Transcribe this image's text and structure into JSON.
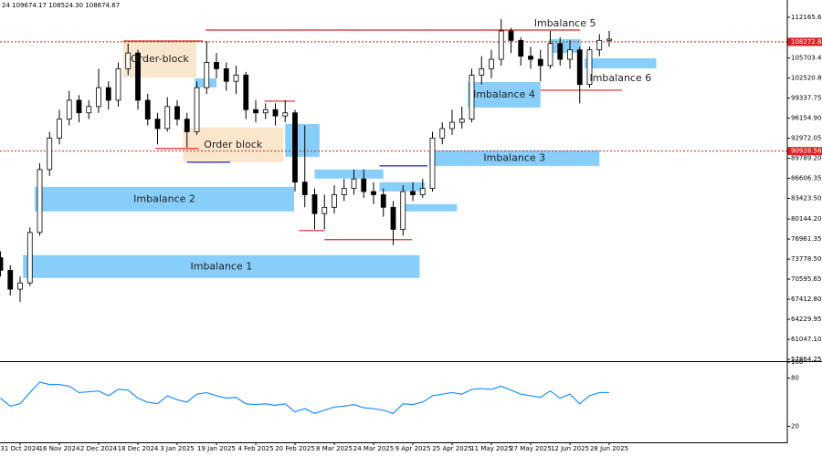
{
  "chart_data": {
    "type": "candlestick",
    "header": "24 109674.17 108524.30 108674.67",
    "categories": [
      null,
      null,
      "31 Oct 2024",
      null,
      null,
      null,
      "16 Nov 2024",
      null,
      null,
      null,
      "2 Dec 2024",
      null,
      null,
      null,
      "18 Dec 2024",
      null,
      null,
      null,
      "3 Jan 2025",
      null,
      null,
      null,
      "19 Jan 2025",
      null,
      null,
      null,
      "4 Feb 2025",
      null,
      null,
      null,
      "20 Feb 2025",
      null,
      null,
      null,
      "8 Mar 2025",
      null,
      null,
      null,
      "24 Mar 2025",
      null,
      null,
      null,
      "9 Apr 2025",
      null,
      null,
      null,
      "25 Apr 2025",
      null,
      null,
      null,
      "11 May 2025",
      null,
      null,
      null,
      "27 May 2025",
      null,
      null,
      null,
      "12 Jun 2025",
      null,
      null,
      null,
      "28 Jun 2025"
    ],
    "open": [
      74000,
      72000,
      69000,
      70000,
      78000,
      88000,
      93000,
      96000,
      99000,
      97000,
      98000,
      101000,
      99000,
      104000,
      106500,
      99000,
      96000,
      94500,
      98000,
      96000,
      94000,
      101000,
      105000,
      104000,
      102000,
      103000,
      97500,
      97000,
      97500,
      96500,
      97000,
      86000,
      84000,
      81000,
      82000,
      84000,
      85000,
      86500,
      84500,
      84000,
      82000,
      78500,
      84500,
      84000,
      85000,
      93000,
      94500,
      95500,
      96000,
      103000,
      104000,
      105500,
      110000,
      108500,
      106000,
      105500,
      104500,
      108000,
      105500,
      107000,
      101500,
      107000,
      108500
    ],
    "high": [
      75000,
      72800,
      71000,
      78800,
      89000,
      94000,
      97500,
      100500,
      99800,
      99000,
      104000,
      102000,
      105000,
      108000,
      107000,
      100000,
      97000,
      99500,
      99000,
      97000,
      102000,
      108400,
      106500,
      105000,
      104500,
      103500,
      99000,
      98500,
      98500,
      99000,
      97500,
      95000,
      85000,
      84000,
      85500,
      86500,
      88000,
      88000,
      86000,
      85000,
      83000,
      85500,
      86000,
      86500,
      94000,
      95500,
      97500,
      98000,
      104000,
      106000,
      107000,
      111900,
      110500,
      109000,
      107500,
      107000,
      110000,
      109000,
      108500,
      107500,
      107500,
      109500,
      110000
    ],
    "low": [
      71000,
      68000,
      67000,
      69500,
      77500,
      87000,
      92000,
      95000,
      95500,
      96000,
      97000,
      97500,
      98000,
      103000,
      97500,
      95000,
      92000,
      94000,
      95000,
      91500,
      93500,
      100000,
      102500,
      100500,
      100000,
      96000,
      95500,
      96000,
      95000,
      95500,
      84500,
      82000,
      78500,
      78500,
      81000,
      83000,
      84000,
      83500,
      82500,
      80500,
      76000,
      77500,
      83000,
      83500,
      84500,
      92000,
      93500,
      94500,
      95500,
      101500,
      102500,
      104500,
      106500,
      104500,
      104000,
      102000,
      104000,
      104500,
      104000,
      98500,
      101000,
      106000,
      107500
    ],
    "close": [
      72000,
      69000,
      70000,
      78000,
      88000,
      93000,
      96000,
      99000,
      97000,
      98000,
      101000,
      99000,
      104000,
      106500,
      99000,
      96000,
      94500,
      98000,
      96000,
      94000,
      101000,
      105000,
      104000,
      102000,
      103000,
      97500,
      97000,
      97500,
      96500,
      97000,
      86000,
      84000,
      81000,
      82000,
      84000,
      85000,
      86500,
      84500,
      84000,
      82000,
      78500,
      84500,
      84000,
      85000,
      93000,
      94500,
      95500,
      96000,
      103000,
      104000,
      105500,
      110000,
      108500,
      106000,
      105500,
      104500,
      108000,
      105500,
      107000,
      101500,
      107000,
      108500,
      108700
    ],
    "ylim": [
      57575,
      114336
    ],
    "yticks": [
      112165.65,
      105703.45,
      {
        "value": 102520.8,
        "label": "102520.80"
      },
      99337.75,
      {
        "value": 96154.9,
        "label": "96154.90"
      },
      92972.05,
      {
        "value": 89789.2,
        "label": "89789.20"
      },
      86606.35,
      {
        "value": 83423.5,
        "label": "83423.50"
      },
      {
        "value": 80144.2,
        "label": "80144.20"
      },
      76961.35,
      {
        "value": 73778.5,
        "label": "73778.50"
      },
      70595.65,
      {
        "value": 67412.8,
        "label": "67412.80"
      },
      64229.95,
      {
        "value": 61047.1,
        "label": "61047.10"
      },
      57864.25
    ],
    "price_marks": [
      108272.88,
      90928.58
    ],
    "zones": [
      {
        "label": "Imbalance 1",
        "color": "#87cefa",
        "x_range": [
          2.3,
          42.7
        ],
        "y_range": [
          70788,
          74405
        ]
      },
      {
        "label": "Imbalance 2",
        "color": "#87cefa",
        "x_range": [
          3.5,
          29.9
        ],
        "y_range": [
          81349,
          85255
        ]
      },
      {
        "label": "Imbalance 3",
        "color": "#87cefa",
        "x_range": [
          43.7,
          61
        ],
        "y_range": [
          88583,
          91042
        ]
      },
      {
        "label": "Imbalance 4",
        "color": "#87cefa",
        "x_range": [
          47.6,
          55
        ],
        "y_range": [
          97842,
          101893
        ]
      },
      {
        "label": "Imbalance 5",
        "color": "#87cefa",
        "x_range": [
          55.9,
          59.1
        ],
        "y_range": [
          106523,
          108693
        ]
      },
      {
        "label": "Imbalance 6",
        "color": "#87cefa",
        "x_range": [
          59.5,
          66.8
        ],
        "y_range": [
          104064,
          105655
        ]
      },
      {
        "label": "Order-block",
        "color": "#fae6cd",
        "x_range": [
          12.5,
          19.95
        ],
        "y_range": [
          102617,
          108404
        ]
      },
      {
        "label": "Order block",
        "color": "#fae6cd",
        "x_range": [
          18.6,
          28.8
        ],
        "y_range": [
          89162,
          94660
        ]
      },
      {
        "color": "#87cefa",
        "x_range": [
          19.8,
          22
        ],
        "y_range": [
          101025,
          102472
        ]
      },
      {
        "color": "#87cefa",
        "x_range": [
          29,
          32.5
        ],
        "y_range": [
          90030,
          95238
        ]
      },
      {
        "color": "#87cefa",
        "x_range": [
          32,
          39
        ],
        "y_range": [
          86557,
          88004
        ]
      },
      {
        "color": "#87cefa",
        "x_range": [
          38.6,
          43.2
        ],
        "y_range": [
          84532,
          85979
        ]
      },
      {
        "color": "#87cefa",
        "x_range": [
          40.9,
          46.5
        ],
        "y_range": [
          81349,
          82506
        ]
      }
    ],
    "levels": [
      {
        "price": 110140,
        "x_range": [
          20.9,
          59
        ],
        "color": "#e02020"
      },
      {
        "price": 108404,
        "x_range": [
          12.5,
          20.6
        ],
        "color": "#e02020"
      },
      {
        "price": 91332,
        "x_range": [
          15.8,
          20.2
        ],
        "color": "#e02020"
      },
      {
        "price": 89162,
        "x_range": [
          19,
          23.4
        ],
        "color": "#2020c0"
      },
      {
        "price": 98855,
        "x_range": [
          26.9,
          30
        ],
        "color": "#e02020"
      },
      {
        "price": 78311,
        "x_range": [
          30.4,
          33
        ],
        "color": "#e02020"
      },
      {
        "price": 76864,
        "x_range": [
          33,
          41.9
        ],
        "color": "#e02020"
      },
      {
        "price": 88583,
        "x_range": [
          38.6,
          43.5
        ],
        "color": "#2020c0"
      },
      {
        "price": 100591,
        "x_range": [
          55,
          63.3
        ],
        "color": "#e02020"
      }
    ],
    "indicator": {
      "color": "#1e90ff",
      "ylim": [
        0,
        100
      ],
      "yticks": [
        100,
        80,
        20
      ],
      "values": [
        55,
        45,
        48,
        62,
        75,
        72,
        72,
        70,
        62,
        63,
        64,
        58,
        66,
        65,
        55,
        50,
        48,
        58,
        53,
        50,
        60,
        62,
        58,
        55,
        56,
        48,
        47,
        48,
        46,
        48,
        38,
        42,
        36,
        40,
        44,
        45,
        47,
        43,
        42,
        40,
        36,
        48,
        47,
        50,
        58,
        60,
        62,
        60,
        66,
        67,
        66,
        70,
        65,
        60,
        58,
        56,
        64,
        55,
        60,
        48,
        58,
        62,
        62
      ]
    }
  }
}
